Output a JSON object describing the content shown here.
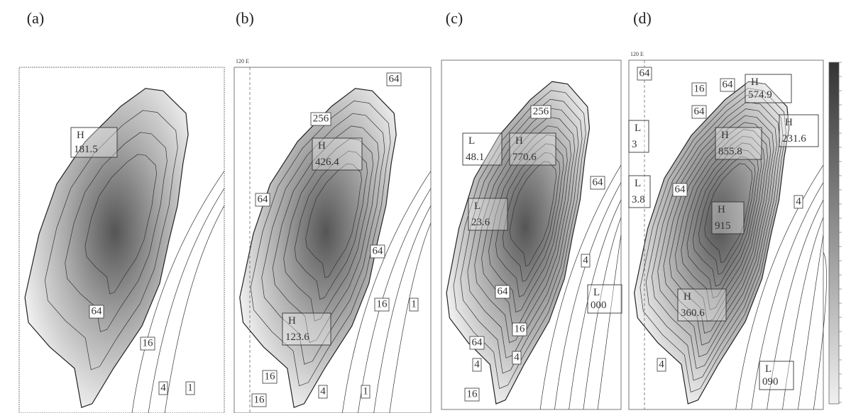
{
  "panels": [
    {
      "label": "(a)",
      "highs_lows": [
        {
          "kind": "H",
          "value": "181.5"
        }
      ],
      "contour_labels": [
        "64",
        "16",
        "4",
        "1"
      ]
    },
    {
      "label": "(b)",
      "axis_label": "120 E",
      "highs_lows": [
        {
          "kind": "H",
          "value": "426.4"
        },
        {
          "kind": "H",
          "value": "123.6"
        }
      ],
      "contour_labels": [
        "256",
        "64",
        "64",
        "64",
        "16",
        "1",
        "16",
        "16",
        "4",
        "1"
      ]
    },
    {
      "label": "(c)",
      "highs_lows": [
        {
          "kind": "L",
          "value": "48.1"
        },
        {
          "kind": "H",
          "value": "770.6"
        },
        {
          "kind": "L",
          "value": "23.6"
        },
        {
          "kind": "L",
          "value": "000"
        }
      ],
      "contour_labels": [
        "256",
        "64",
        "64",
        "64",
        "16",
        "4",
        "16",
        "4",
        "4"
      ]
    },
    {
      "label": "(d)",
      "axis_label": "120 E",
      "highs_lows": [
        {
          "kind": "H",
          "value": "574.9"
        },
        {
          "kind": "H",
          "value": "855.8"
        },
        {
          "kind": "H",
          "value": "231.6"
        },
        {
          "kind": "L",
          "value": "3"
        },
        {
          "kind": "L",
          "value": "3.8"
        },
        {
          "kind": "H",
          "value": "915"
        },
        {
          "kind": "H",
          "value": "360.6"
        },
        {
          "kind": "L",
          "value": "090"
        }
      ],
      "contour_labels": [
        "64",
        "16",
        "64",
        "64",
        "64",
        "4",
        "4"
      ]
    }
  ]
}
